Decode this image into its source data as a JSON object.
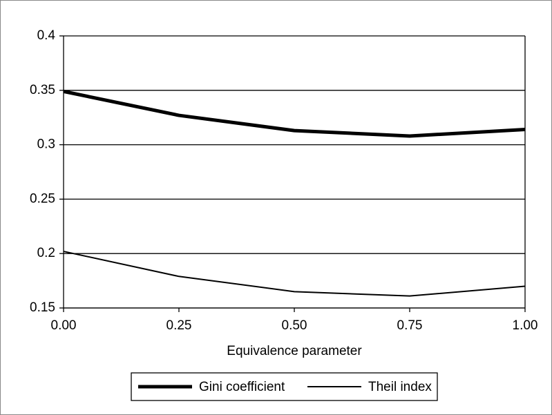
{
  "chart_data": {
    "type": "line",
    "x_label": "Equivalence parameter",
    "x": [
      0,
      0.25,
      0.5,
      0.75,
      1
    ],
    "series": [
      {
        "name": "Gini coefficient",
        "color": "#000000",
        "values": [
          0.349,
          0.327,
          0.313,
          0.308,
          0.314
        ]
      },
      {
        "name": "Theil index",
        "color": "#000000",
        "values": [
          0.202,
          0.179,
          0.165,
          0.161,
          0.17
        ]
      }
    ],
    "xlim": [
      0,
      1
    ],
    "xticks": [
      {
        "value": 0,
        "label": "0.00"
      },
      0.25,
      {
        "value": 0.5,
        "label": "0.50"
      },
      0.75,
      {
        "value": 1,
        "label": "1.00"
      }
    ],
    "ylim": [
      0.15,
      0.4
    ],
    "yticks": [
      0.15,
      0.2,
      0.25,
      0.3,
      0.35,
      0.4
    ],
    "grid": true,
    "legend": "bottom"
  }
}
